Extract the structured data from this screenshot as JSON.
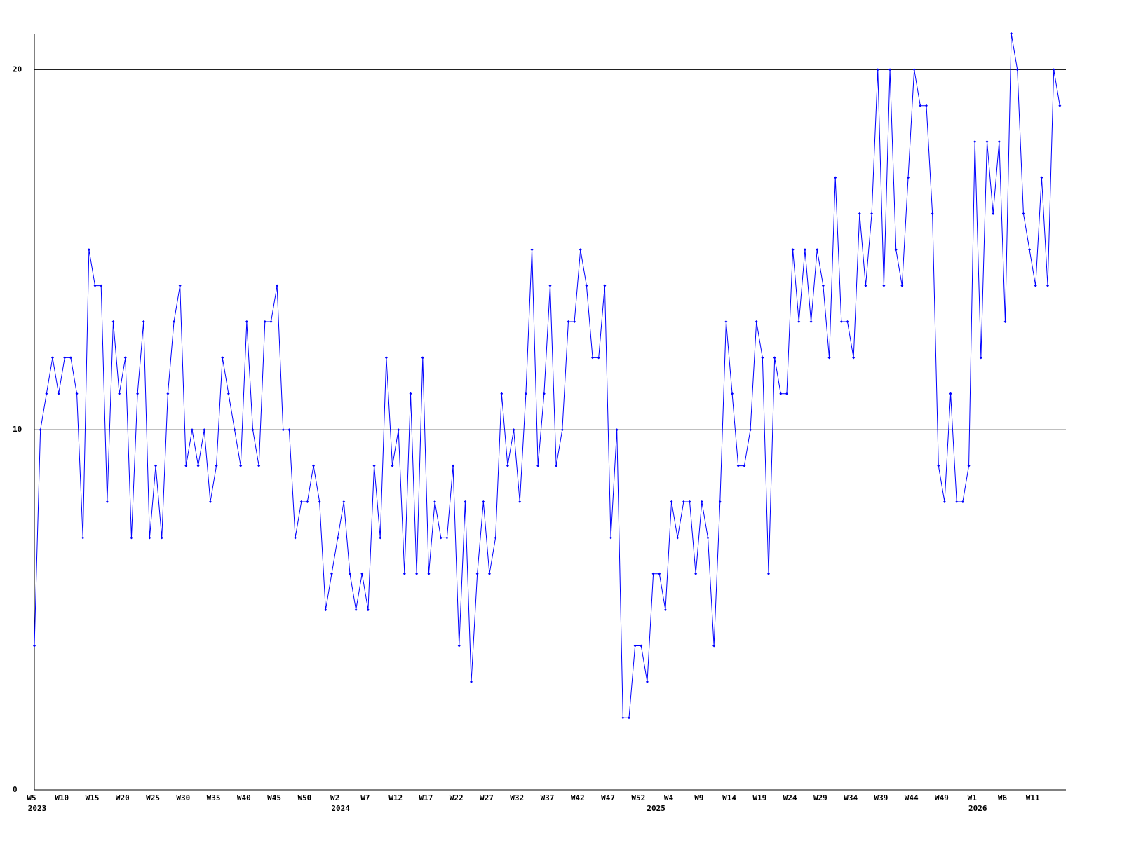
{
  "chart_data": {
    "type": "line",
    "categories": [
      "W5",
      null,
      null,
      null,
      null,
      "W10",
      null,
      null,
      null,
      null,
      "W15",
      null,
      null,
      null,
      null,
      "W20",
      null,
      null,
      null,
      null,
      "W25",
      null,
      null,
      null,
      null,
      "W30",
      null,
      null,
      null,
      null,
      "W35",
      null,
      null,
      null,
      null,
      "W40",
      null,
      null,
      null,
      null,
      "W45",
      null,
      null,
      null,
      null,
      "W50",
      null,
      null,
      null,
      null,
      "W2",
      null,
      null,
      null,
      null,
      "W7",
      null,
      null,
      null,
      null,
      "W12",
      null,
      null,
      null,
      null,
      "W17",
      null,
      null,
      null,
      null,
      "W22",
      null,
      null,
      null,
      null,
      "W27",
      null,
      null,
      null,
      null,
      "W32",
      null,
      null,
      null,
      null,
      "W37",
      null,
      null,
      null,
      null,
      "W42",
      null,
      null,
      null,
      null,
      "W47",
      null,
      null,
      null,
      null,
      "W52",
      null,
      null,
      null,
      null,
      "W4",
      null,
      null,
      null,
      null,
      "W9",
      null,
      null,
      null,
      null,
      "W14",
      null,
      null,
      null,
      null,
      "W19",
      null,
      null,
      null,
      null,
      "W24",
      null,
      null,
      null,
      null,
      "W29",
      null,
      null,
      null,
      null,
      "W34",
      null,
      null,
      null,
      null,
      "W39",
      null,
      null,
      null,
      null,
      "W44",
      null,
      null,
      null,
      null,
      "W49",
      null,
      null,
      null,
      null,
      "W1",
      null,
      null,
      null,
      null,
      "W6",
      null,
      null,
      null,
      null,
      "W11",
      null,
      null,
      null,
      null
    ],
    "year_labels": [
      "2023",
      null,
      null,
      null,
      null,
      null,
      null,
      null,
      null,
      null,
      null,
      null,
      null,
      null,
      null,
      null,
      null,
      null,
      null,
      null,
      null,
      null,
      null,
      null,
      null,
      null,
      null,
      null,
      null,
      null,
      null,
      null,
      null,
      null,
      null,
      null,
      null,
      null,
      null,
      null,
      null,
      null,
      null,
      null,
      null,
      null,
      null,
      null,
      null,
      null,
      "2024",
      null,
      null,
      null,
      null,
      null,
      null,
      null,
      null,
      null,
      null,
      null,
      null,
      null,
      null,
      null,
      null,
      null,
      null,
      null,
      null,
      null,
      null,
      null,
      null,
      null,
      null,
      null,
      null,
      null,
      null,
      null,
      null,
      null,
      null,
      null,
      null,
      null,
      null,
      null,
      null,
      null,
      null,
      null,
      null,
      null,
      null,
      null,
      null,
      null,
      null,
      null,
      "2025",
      null,
      null,
      null,
      null,
      null,
      null,
      null,
      null,
      null,
      null,
      null,
      null,
      null,
      null,
      null,
      null,
      null,
      null,
      null,
      null,
      null,
      null,
      null,
      null,
      null,
      null,
      null,
      null,
      null,
      null,
      null,
      null,
      null,
      null,
      null,
      null,
      null,
      null,
      null,
      null,
      null,
      null,
      null,
      null,
      null,
      null,
      null,
      null,
      null,
      null,
      null,
      null,
      "2026",
      null,
      null,
      null,
      null,
      null,
      null,
      null,
      null,
      null,
      null,
      null,
      null,
      null,
      null
    ],
    "series": [
      {
        "color": "#0000ff",
        "values": [
          4,
          10,
          11,
          12,
          11,
          12,
          12,
          11,
          7,
          15,
          14,
          14,
          8,
          13,
          11,
          12,
          7,
          11,
          13,
          7,
          9,
          7,
          11,
          13,
          14,
          9,
          10,
          9,
          10,
          8,
          9,
          12,
          11,
          10,
          9,
          13,
          10,
          9,
          13,
          13,
          14,
          10,
          10,
          7,
          8,
          8,
          9,
          8,
          5,
          6,
          7,
          8,
          6,
          5,
          6,
          5,
          9,
          7,
          12,
          9,
          10,
          6,
          11,
          6,
          12,
          6,
          8,
          7,
          7,
          9,
          4,
          8,
          3,
          6,
          8,
          6,
          7,
          11,
          9,
          10,
          8,
          11,
          15,
          9,
          11,
          14,
          9,
          10,
          13,
          13,
          15,
          14,
          12,
          12,
          14,
          7,
          10,
          2,
          2,
          4,
          4,
          3,
          6,
          6,
          5,
          8,
          7,
          8,
          8,
          6,
          8,
          7,
          4,
          8,
          13,
          11,
          9,
          9,
          10,
          13,
          12,
          6,
          12,
          11,
          11,
          15,
          13,
          15,
          13,
          15,
          14,
          12,
          17,
          13,
          13,
          12,
          16,
          14,
          16,
          20,
          14,
          20,
          15,
          14,
          17,
          20,
          19,
          19,
          16,
          9,
          8,
          11,
          8,
          8,
          9,
          18,
          12,
          18,
          16,
          18,
          13,
          21,
          20,
          16,
          15,
          14,
          17,
          14,
          20,
          19
        ]
      }
    ],
    "ylim": [
      0,
      21
    ],
    "yticks": [
      0,
      10,
      20
    ],
    "grid": true
  }
}
